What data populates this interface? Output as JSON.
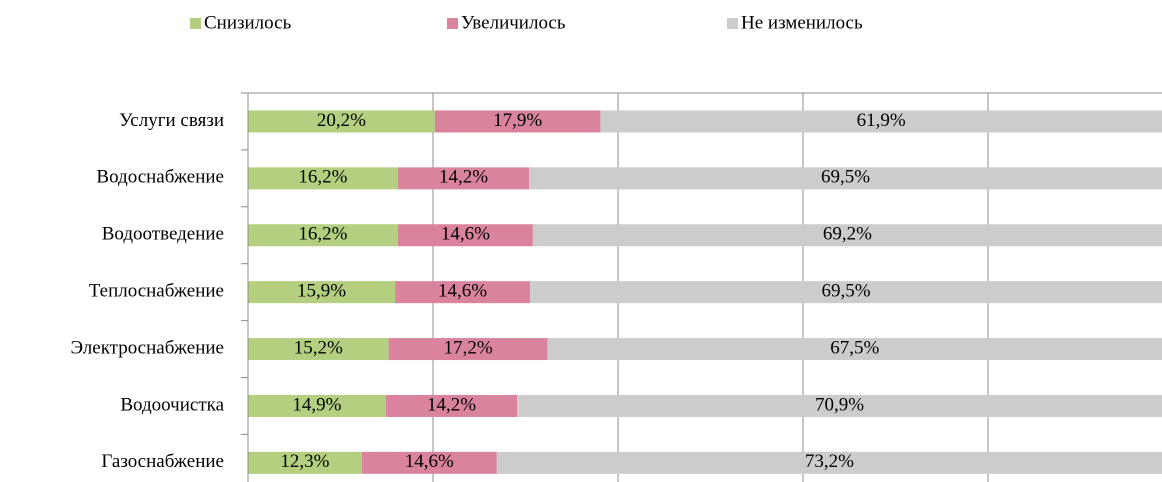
{
  "chart_data": {
    "type": "stacked_barh",
    "categories": [
      "Услуги связи",
      "Водоснабжение",
      "Водоотведение",
      "Теплоснабжение",
      "Электроснабжение",
      "Водоочистка",
      "Газоснабжение"
    ],
    "series": [
      {
        "name": "Снизилось",
        "color": "#b3cf7f",
        "values": [
          20.2,
          16.2,
          16.2,
          15.9,
          15.2,
          14.9,
          12.3
        ],
        "value_labels": [
          "20,2%",
          "16,2%",
          "16,2%",
          "15,9%",
          "15,2%",
          "14,9%",
          "12,3%"
        ]
      },
      {
        "name": "Увеличилось",
        "color": "#d9849c",
        "values": [
          17.9,
          14.2,
          14.6,
          14.6,
          17.2,
          14.2,
          14.6
        ],
        "value_labels": [
          "17,9%",
          "14,2%",
          "14,6%",
          "14,6%",
          "17,2%",
          "14,2%",
          "14,6%"
        ]
      },
      {
        "name": "Не изменилось",
        "color": "#cccccc",
        "values": [
          61.9,
          69.5,
          69.2,
          69.5,
          67.5,
          70.9,
          73.2
        ],
        "value_labels": [
          "61,9%",
          "69,5%",
          "69,2%",
          "69,5%",
          "67,5%",
          "70,9%",
          "73,2%"
        ]
      }
    ],
    "xlim": [
      0,
      100
    ],
    "xticks": [
      20,
      40,
      60,
      80
    ],
    "grid": true,
    "legend": "top"
  }
}
